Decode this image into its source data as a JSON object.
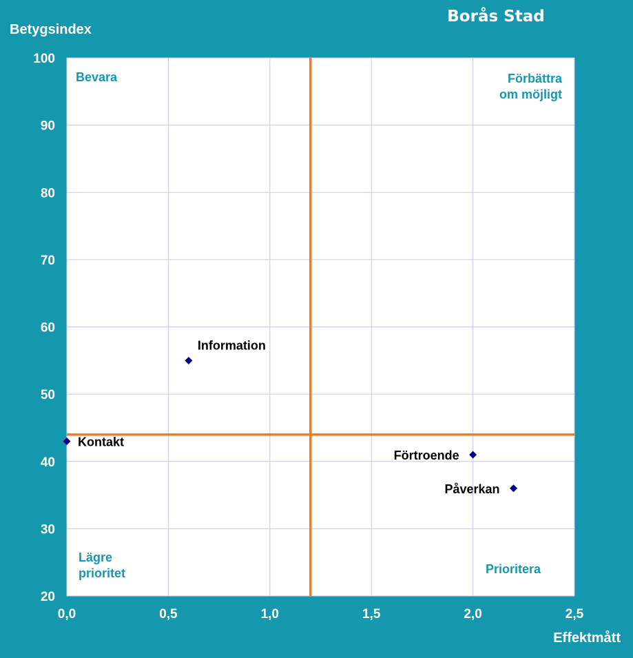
{
  "title": "Borås Stad",
  "colors": {
    "background": "#1597ae",
    "plot_background": "#ffffff",
    "gridline": "#c8c8e6",
    "threshold_line": "#f47920",
    "marker": "#000080",
    "quadrant_text": "#1597ae",
    "axis_text": "#ffffff"
  },
  "chart_data": {
    "type": "scatter",
    "title": "Borås Stad",
    "xlabel": "Effektmått",
    "ylabel": "Betygsindex",
    "xlim": [
      0,
      2.5
    ],
    "ylim": [
      20,
      100
    ],
    "xticks": [
      0,
      0.5,
      1.0,
      1.5,
      2.0,
      2.5
    ],
    "xtick_labels": [
      "0,0",
      "0,5",
      "1,0",
      "1,5",
      "2,0",
      "2,5"
    ],
    "yticks": [
      20,
      30,
      40,
      50,
      60,
      70,
      80,
      90,
      100
    ],
    "ytick_labels": [
      "20",
      "30",
      "40",
      "50",
      "60",
      "70",
      "80",
      "90",
      "100"
    ],
    "grid": true,
    "threshold_x": 1.2,
    "threshold_y": 44,
    "points": [
      {
        "label": "Information",
        "x": 0.6,
        "y": 55,
        "label_side": "above-right"
      },
      {
        "label": "Kontakt",
        "x": 0.0,
        "y": 43,
        "label_side": "right"
      },
      {
        "label": "Förtroende",
        "x": 2.0,
        "y": 41,
        "label_side": "left"
      },
      {
        "label": "Påverkan",
        "x": 2.2,
        "y": 36,
        "label_side": "left"
      }
    ],
    "quadrants": [
      {
        "lines": [
          "Bevara"
        ],
        "position": "top-left"
      },
      {
        "lines": [
          "Förbättra",
          "om möjligt"
        ],
        "position": "top-right"
      },
      {
        "lines": [
          "Lägre",
          "prioritet"
        ],
        "position": "bottom-left"
      },
      {
        "lines": [
          "Prioritera"
        ],
        "position": "bottom-right"
      }
    ]
  }
}
